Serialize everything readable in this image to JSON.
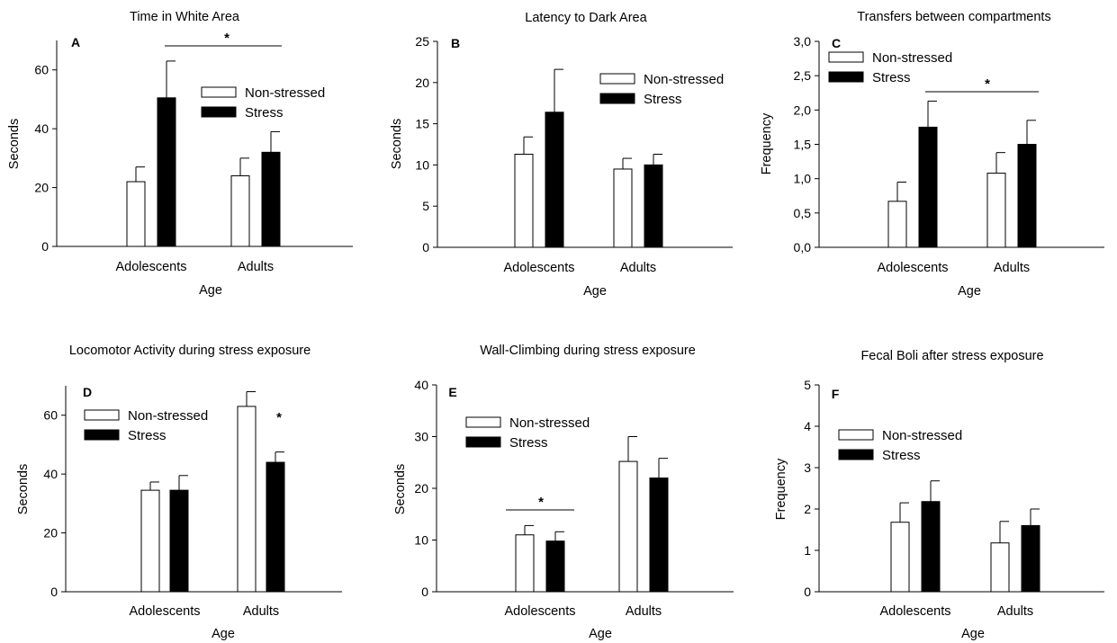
{
  "chart_data": [
    {
      "type": "bar",
      "panel_label": "A",
      "title": "Time in White Area",
      "xlabel": "Age",
      "ylabel": "Seconds",
      "categories": [
        "Adolescents",
        "Adults"
      ],
      "ylim": [
        0,
        70
      ],
      "yticks": [
        0,
        20,
        40,
        60
      ],
      "tick_labels": [
        "0",
        "20",
        "40",
        "60"
      ],
      "series": [
        {
          "name": "Non-stressed",
          "values": [
            22,
            24
          ],
          "errors": [
            5,
            6
          ],
          "fill": "#ffffff"
        },
        {
          "name": "Stress",
          "values": [
            50.5,
            32
          ],
          "errors": [
            12.5,
            7
          ],
          "fill": "#000000"
        }
      ],
      "legend_position": "center-right",
      "annotations": [
        {
          "text": "*",
          "kind": "bracket",
          "from": "Adolescents Stress",
          "to": "Adults Stress",
          "y": 68
        }
      ]
    },
    {
      "type": "bar",
      "panel_label": "B",
      "title": "Latency to Dark Area",
      "xlabel": "Age",
      "ylabel": "Seconds",
      "categories": [
        "Adolescents",
        "Adults"
      ],
      "ylim": [
        0,
        25
      ],
      "yticks": [
        0,
        5,
        10,
        15,
        20,
        25
      ],
      "tick_labels": [
        "0",
        "5",
        "10",
        "15",
        "20",
        "25"
      ],
      "series": [
        {
          "name": "Non-stressed",
          "values": [
            11.3,
            9.5
          ],
          "errors": [
            2.1,
            1.3
          ],
          "fill": "#ffffff"
        },
        {
          "name": "Stress",
          "values": [
            16.4,
            10
          ],
          "errors": [
            5.2,
            1.3
          ],
          "fill": "#000000"
        }
      ],
      "legend_position": "top-right",
      "annotations": []
    },
    {
      "type": "bar",
      "panel_label": "C",
      "title": "Transfers between compartments",
      "xlabel": "Age",
      "ylabel": "Frequency",
      "categories": [
        "Adolescents",
        "Adults"
      ],
      "ylim": [
        0,
        3
      ],
      "yticks": [
        0,
        0.5,
        1,
        1.5,
        2,
        2.5,
        3
      ],
      "tick_labels": [
        "0,0",
        "0,5",
        "1,0",
        "1,5",
        "2,0",
        "2,5",
        "3,0"
      ],
      "series": [
        {
          "name": "Non-stressed",
          "values": [
            0.67,
            1.08
          ],
          "errors": [
            0.28,
            0.3
          ],
          "fill": "#ffffff"
        },
        {
          "name": "Stress",
          "values": [
            1.75,
            1.5
          ],
          "errors": [
            0.38,
            0.35
          ],
          "fill": "#000000"
        }
      ],
      "legend_position": "top-left",
      "annotations": [
        {
          "text": "*",
          "kind": "bracket",
          "from": "Adolescents Stress",
          "to": "Adults Non-stressed",
          "y": 2.27
        }
      ]
    },
    {
      "type": "bar",
      "panel_label": "D",
      "title": "Locomotor Activity during stress exposure",
      "xlabel": "Age",
      "ylabel": "Seconds",
      "categories": [
        "Adolescents",
        "Adults"
      ],
      "ylim": [
        0,
        70
      ],
      "yticks": [
        0,
        20,
        40,
        60
      ],
      "tick_labels": [
        "0",
        "20",
        "40",
        "60"
      ],
      "series": [
        {
          "name": "Non-stressed",
          "values": [
            34.5,
            63
          ],
          "errors": [
            2.8,
            5
          ],
          "fill": "#ffffff"
        },
        {
          "name": "Stress",
          "values": [
            34.5,
            44
          ],
          "errors": [
            5,
            3.5
          ],
          "fill": "#000000"
        }
      ],
      "legend_position": "top-left",
      "annotations": [
        {
          "text": "*",
          "kind": "star",
          "at": "Adults Stress",
          "y": 51.5
        }
      ]
    },
    {
      "type": "bar",
      "panel_label": "E",
      "title": "Wall-Climbing during stress exposure",
      "xlabel": "Age",
      "ylabel": "Seconds",
      "categories": [
        "Adolescents",
        "Adults"
      ],
      "ylim": [
        0,
        40
      ],
      "yticks": [
        0,
        10,
        20,
        30,
        40
      ],
      "tick_labels": [
        "0",
        "10",
        "20",
        "30",
        "40"
      ],
      "series": [
        {
          "name": "Non-stressed",
          "values": [
            11,
            25.2
          ],
          "errors": [
            1.8,
            4.8
          ],
          "fill": "#ffffff"
        },
        {
          "name": "Stress",
          "values": [
            9.8,
            22
          ],
          "errors": [
            1.8,
            3.8
          ],
          "fill": "#000000"
        }
      ],
      "legend_position": "top-left",
      "annotations": [
        {
          "text": "*",
          "kind": "bracket",
          "from": "Adolescents left",
          "to": "Adolescents right",
          "y": 15.3
        }
      ]
    },
    {
      "type": "bar",
      "panel_label": "F",
      "title": "Fecal Boli after stress exposure",
      "xlabel": "Age",
      "ylabel": "Frequency",
      "categories": [
        "Adolescents",
        "Adults"
      ],
      "ylim": [
        0,
        5
      ],
      "yticks": [
        0,
        1,
        2,
        3,
        4,
        5
      ],
      "tick_labels": [
        "0",
        "1",
        "2",
        "3",
        "4",
        "5"
      ],
      "series": [
        {
          "name": "Non-stressed",
          "values": [
            1.68,
            1.18
          ],
          "errors": [
            0.47,
            0.52
          ],
          "fill": "#ffffff"
        },
        {
          "name": "Stress",
          "values": [
            2.18,
            1.6
          ],
          "errors": [
            0.5,
            0.4
          ],
          "fill": "#000000"
        }
      ],
      "legend_position": "center",
      "annotations": []
    }
  ]
}
